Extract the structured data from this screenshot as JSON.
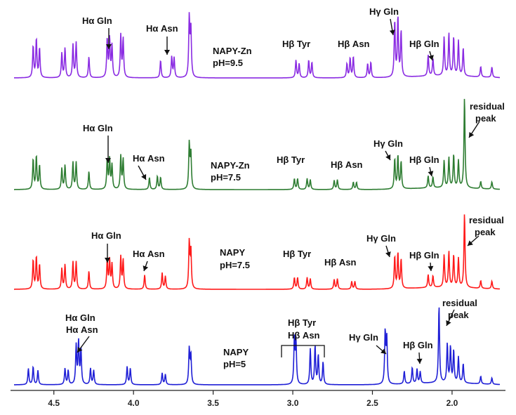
{
  "chart_data": {
    "type": "line",
    "title": "",
    "xlabel": "",
    "ylabel": "",
    "x_axis": {
      "xlim": [
        4.75,
        1.7
      ],
      "reversed": true,
      "ticks": [
        4.5,
        4.0,
        3.5,
        3.0,
        2.5,
        2.0
      ],
      "tick_labels": [
        "4.5",
        "4.0",
        "3.5",
        "3.0",
        "2.5",
        "2.0"
      ]
    },
    "series": [
      {
        "name": "NAPY-Zn pH=9.5",
        "color": "#8a2be2",
        "condition_lines": [
          "NAPY-Zn",
          "pH=9.5"
        ],
        "peaks": [
          [
            4.63,
            0.45
          ],
          [
            4.61,
            0.55
          ],
          [
            4.59,
            0.42
          ],
          [
            4.45,
            0.35
          ],
          [
            4.43,
            0.42
          ],
          [
            4.38,
            0.47
          ],
          [
            4.36,
            0.5
          ],
          [
            4.28,
            0.3
          ],
          [
            4.165,
            0.55
          ],
          [
            4.15,
            0.55
          ],
          [
            4.135,
            0.45
          ],
          [
            4.08,
            0.6
          ],
          [
            4.065,
            0.55
          ],
          [
            3.83,
            0.25
          ],
          [
            3.76,
            0.3
          ],
          [
            3.745,
            0.28
          ],
          [
            3.65,
            0.85
          ],
          [
            3.64,
            0.7
          ],
          [
            2.98,
            0.25
          ],
          [
            2.96,
            0.2
          ],
          [
            2.9,
            0.25
          ],
          [
            2.88,
            0.22
          ],
          [
            2.66,
            0.2
          ],
          [
            2.64,
            0.28
          ],
          [
            2.62,
            0.3
          ],
          [
            2.53,
            0.2
          ],
          [
            2.51,
            0.22
          ],
          [
            2.36,
            0.8
          ],
          [
            2.34,
            0.85
          ],
          [
            2.32,
            0.65
          ],
          [
            2.15,
            0.3
          ],
          [
            2.12,
            0.25
          ],
          [
            2.05,
            0.55
          ],
          [
            2.02,
            0.6
          ],
          [
            1.99,
            0.55
          ],
          [
            1.96,
            0.5
          ],
          [
            1.93,
            0.4
          ],
          [
            1.82,
            0.15
          ],
          [
            1.75,
            0.15
          ]
        ],
        "annotations": [
          "Hα Gln",
          "Hα Asn",
          "Hβ Tyr",
          "Hβ Asn",
          "Hγ Gln",
          "Hβ Gln"
        ]
      },
      {
        "name": "NAPY-Zn pH=7.5",
        "color": "#2e7d32",
        "condition_lines": [
          "NAPY-Zn",
          "pH=7.5"
        ],
        "peaks": [
          [
            4.63,
            0.5
          ],
          [
            4.61,
            0.55
          ],
          [
            4.59,
            0.4
          ],
          [
            4.45,
            0.35
          ],
          [
            4.43,
            0.4
          ],
          [
            4.38,
            0.45
          ],
          [
            4.36,
            0.45
          ],
          [
            4.28,
            0.3
          ],
          [
            4.165,
            0.5
          ],
          [
            4.15,
            0.5
          ],
          [
            4.135,
            0.4
          ],
          [
            4.08,
            0.55
          ],
          [
            4.065,
            0.5
          ],
          [
            3.9,
            0.2
          ],
          [
            3.85,
            0.22
          ],
          [
            3.83,
            0.2
          ],
          [
            3.65,
            0.75
          ],
          [
            3.64,
            0.6
          ],
          [
            2.99,
            0.18
          ],
          [
            2.97,
            0.18
          ],
          [
            2.91,
            0.18
          ],
          [
            2.89,
            0.16
          ],
          [
            2.74,
            0.15
          ],
          [
            2.72,
            0.16
          ],
          [
            2.62,
            0.12
          ],
          [
            2.6,
            0.12
          ],
          [
            2.36,
            0.5
          ],
          [
            2.34,
            0.55
          ],
          [
            2.32,
            0.45
          ],
          [
            2.15,
            0.2
          ],
          [
            2.12,
            0.18
          ],
          [
            2.05,
            0.45
          ],
          [
            2.02,
            0.5
          ],
          [
            1.99,
            0.55
          ],
          [
            1.96,
            0.45
          ],
          [
            1.922,
            1.5
          ],
          [
            1.82,
            0.12
          ],
          [
            1.75,
            0.12
          ]
        ],
        "annotations": [
          "Hα Gln",
          "Hα Asn",
          "Hβ Tyr",
          "Hβ Asn",
          "Hγ Gln",
          "Hβ Gln",
          "residual peak"
        ]
      },
      {
        "name": "NAPY pH=7.5",
        "color": "#ff1a1a",
        "condition_lines": [
          "NAPY",
          "pH=7.5"
        ],
        "peaks": [
          [
            4.63,
            0.45
          ],
          [
            4.61,
            0.5
          ],
          [
            4.59,
            0.38
          ],
          [
            4.45,
            0.32
          ],
          [
            4.43,
            0.38
          ],
          [
            4.38,
            0.42
          ],
          [
            4.36,
            0.42
          ],
          [
            4.28,
            0.28
          ],
          [
            4.165,
            0.45
          ],
          [
            4.15,
            0.45
          ],
          [
            4.135,
            0.38
          ],
          [
            4.08,
            0.5
          ],
          [
            4.065,
            0.45
          ],
          [
            3.93,
            0.22
          ],
          [
            3.82,
            0.25
          ],
          [
            3.8,
            0.2
          ],
          [
            3.65,
            0.72
          ],
          [
            3.64,
            0.6
          ],
          [
            2.99,
            0.18
          ],
          [
            2.97,
            0.18
          ],
          [
            2.91,
            0.18
          ],
          [
            2.89,
            0.16
          ],
          [
            2.74,
            0.15
          ],
          [
            2.72,
            0.16
          ],
          [
            2.63,
            0.12
          ],
          [
            2.61,
            0.12
          ],
          [
            2.36,
            0.5
          ],
          [
            2.34,
            0.55
          ],
          [
            2.32,
            0.45
          ],
          [
            2.15,
            0.2
          ],
          [
            2.12,
            0.18
          ],
          [
            2.05,
            0.5
          ],
          [
            2.02,
            0.55
          ],
          [
            1.99,
            0.5
          ],
          [
            1.96,
            0.45
          ],
          [
            1.922,
            1.15
          ],
          [
            1.82,
            0.12
          ],
          [
            1.75,
            0.12
          ]
        ],
        "annotations": [
          "Hα Gln",
          "Hα Asn",
          "Hβ Tyr",
          "Hβ Asn",
          "Hγ Gln",
          "Hβ Gln",
          "residual peak"
        ]
      },
      {
        "name": "NAPY pH=5",
        "color": "#1f1fd6",
        "condition_lines": [
          "NAPY",
          "pH=5"
        ],
        "peaks": [
          [
            4.66,
            0.25
          ],
          [
            4.63,
            0.28
          ],
          [
            4.6,
            0.22
          ],
          [
            4.43,
            0.25
          ],
          [
            4.41,
            0.22
          ],
          [
            4.36,
            0.6
          ],
          [
            4.345,
            0.65
          ],
          [
            4.33,
            0.55
          ],
          [
            4.27,
            0.25
          ],
          [
            4.25,
            0.22
          ],
          [
            4.04,
            0.28
          ],
          [
            4.02,
            0.25
          ],
          [
            3.82,
            0.18
          ],
          [
            3.8,
            0.16
          ],
          [
            3.65,
            0.55
          ],
          [
            3.64,
            0.45
          ],
          [
            2.99,
            0.7
          ],
          [
            2.98,
            0.65
          ],
          [
            2.89,
            0.55
          ],
          [
            2.86,
            0.6
          ],
          [
            2.84,
            0.45
          ],
          [
            2.81,
            0.35
          ],
          [
            2.42,
            0.8
          ],
          [
            2.41,
            0.7
          ],
          [
            2.3,
            0.2
          ],
          [
            2.25,
            0.25
          ],
          [
            2.22,
            0.22
          ],
          [
            2.2,
            0.18
          ],
          [
            2.082,
            1.2
          ],
          [
            2.03,
            0.6
          ],
          [
            2.01,
            0.55
          ],
          [
            1.99,
            0.5
          ],
          [
            1.96,
            0.4
          ],
          [
            1.93,
            0.3
          ],
          [
            1.82,
            0.12
          ],
          [
            1.75,
            0.1
          ]
        ],
        "annotations": [
          "Hα Gln",
          "Hα Asn",
          "Hβ Tyr",
          "Hβ Asn",
          "Hγ Gln",
          "Hβ Gln",
          "residual peak"
        ]
      }
    ]
  }
}
